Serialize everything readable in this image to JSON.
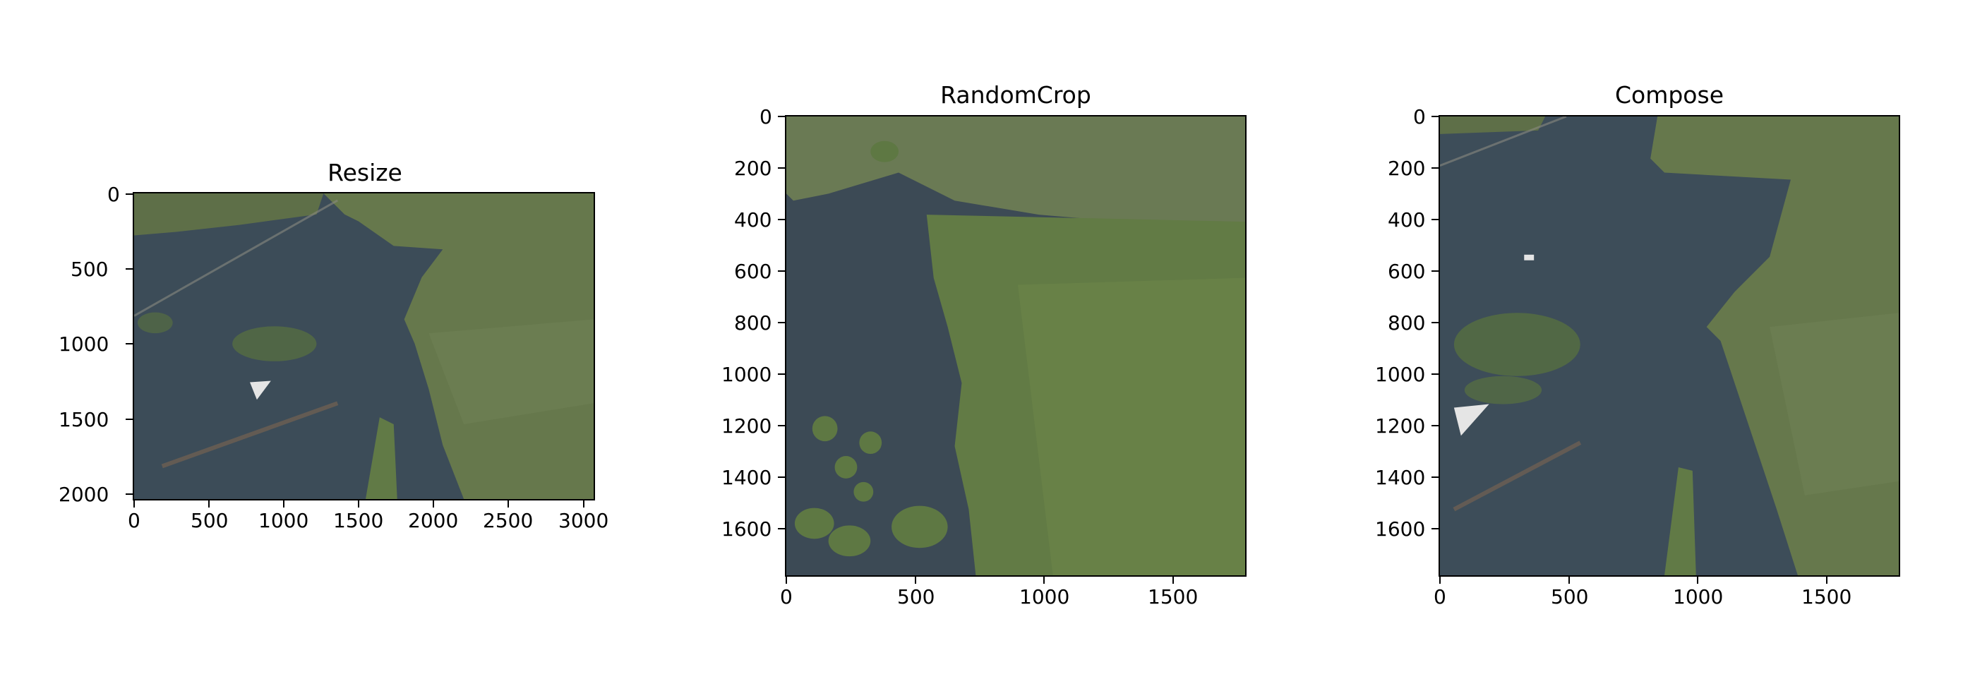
{
  "panels": [
    {
      "title": "Resize",
      "image": "aerial-flooded-forest",
      "x_ticks": [
        "0",
        "500",
        "1000",
        "1500",
        "2000",
        "2500",
        "3000"
      ],
      "y_ticks": [
        "0",
        "500",
        "1000",
        "1500",
        "2000"
      ],
      "x_range": [
        0,
        3072
      ],
      "y_range": [
        0,
        2048
      ]
    },
    {
      "title": "RandomCrop",
      "image": "aerial-flooded-forest-crop",
      "x_ticks": [
        "0",
        "500",
        "1000",
        "1500"
      ],
      "y_ticks": [
        "0",
        "200",
        "400",
        "600",
        "800",
        "1000",
        "1200",
        "1400",
        "1600"
      ],
      "x_range": [
        0,
        1792
      ],
      "y_range": [
        0,
        1792
      ]
    },
    {
      "title": "Compose",
      "image": "aerial-flooded-forest-composed",
      "x_ticks": [
        "0",
        "500",
        "1000",
        "1500"
      ],
      "y_ticks": [
        "0",
        "200",
        "400",
        "600",
        "800",
        "1000",
        "1200",
        "1400",
        "1600"
      ],
      "x_range": [
        0,
        1792
      ],
      "y_range": [
        0,
        1792
      ]
    }
  ]
}
